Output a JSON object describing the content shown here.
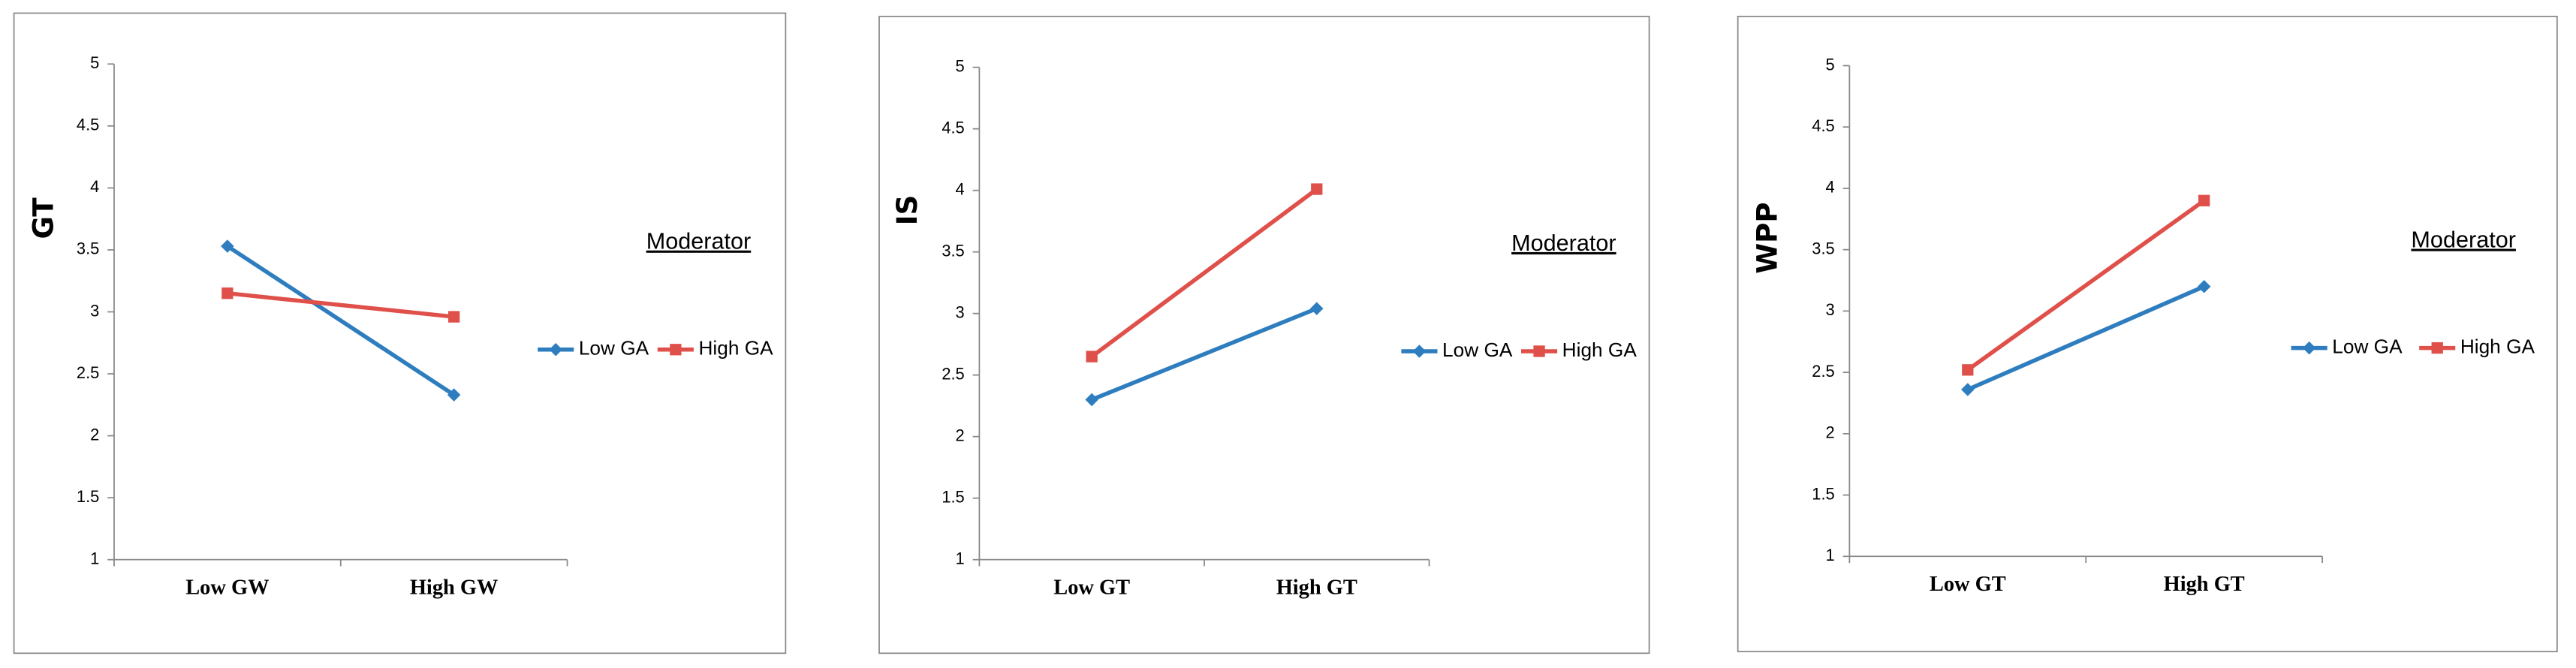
{
  "chart_data": [
    {
      "type": "line",
      "y_label": "GT",
      "legend_title": "Moderator",
      "categories": [
        "Low GW",
        "High GW"
      ],
      "series": [
        {
          "name": "Low GA",
          "color": "#2e7dbf",
          "marker": "diamond",
          "values": [
            3.53,
            2.33
          ]
        },
        {
          "name": "High GA",
          "color": "#e0504a",
          "marker": "square",
          "values": [
            3.15,
            2.96
          ]
        }
      ],
      "ylim": [
        1,
        5
      ],
      "yticks": [
        1,
        1.5,
        2,
        2.5,
        3,
        3.5,
        4,
        4.5,
        5
      ]
    },
    {
      "type": "line",
      "y_label": "IS",
      "legend_title": "Moderator",
      "categories": [
        "Low GT",
        "High GT"
      ],
      "series": [
        {
          "name": "Low GA",
          "color": "#2e7dbf",
          "marker": "diamond",
          "values": [
            2.3,
            3.04
          ]
        },
        {
          "name": "High GA",
          "color": "#e0504a",
          "marker": "square",
          "values": [
            2.65,
            4.01
          ]
        }
      ],
      "ylim": [
        1,
        5
      ],
      "yticks": [
        1,
        1.5,
        2,
        2.5,
        3,
        3.5,
        4,
        4.5,
        5
      ]
    },
    {
      "type": "line",
      "y_label": "WPP",
      "legend_title": "Moderator",
      "categories": [
        "Low GT",
        "High GT"
      ],
      "series": [
        {
          "name": "Low GA",
          "color": "#2e7dbf",
          "marker": "diamond",
          "values": [
            2.36,
            3.2
          ]
        },
        {
          "name": "High GA",
          "color": "#e0504a",
          "marker": "square",
          "values": [
            2.52,
            3.9
          ]
        }
      ],
      "ylim": [
        1,
        5
      ],
      "yticks": [
        1,
        1.5,
        2,
        2.5,
        3,
        3.5,
        4,
        4.5,
        5
      ]
    }
  ]
}
